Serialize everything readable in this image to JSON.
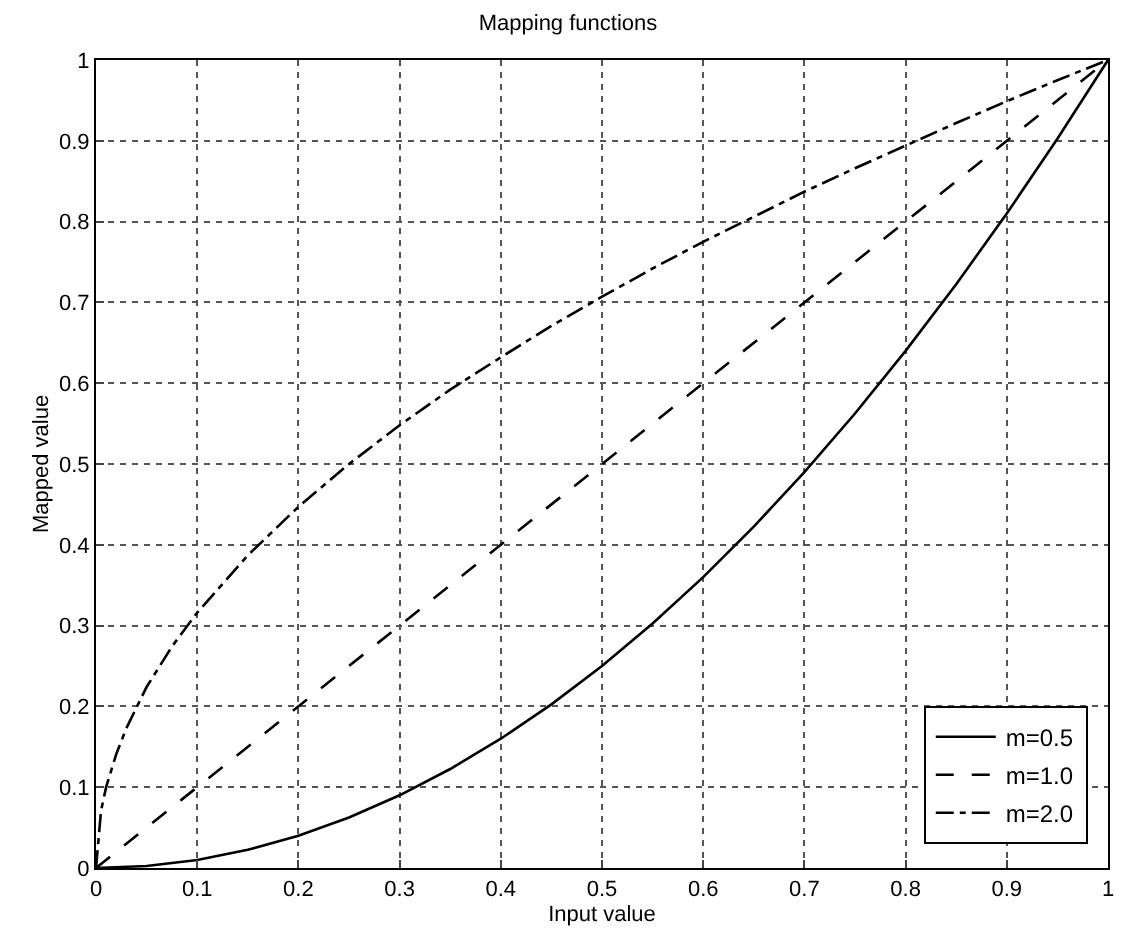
{
  "chart_data": {
    "type": "line",
    "title": "Mapping functions",
    "xlabel": "Input value",
    "ylabel": "Mapped value",
    "xlim": [
      0,
      1
    ],
    "ylim": [
      0,
      1
    ],
    "xticks": [
      0,
      0.1,
      0.2,
      0.3,
      0.4,
      0.5,
      0.6,
      0.7,
      0.8,
      0.9,
      1
    ],
    "yticks": [
      0,
      0.1,
      0.2,
      0.3,
      0.4,
      0.5,
      0.6,
      0.7,
      0.8,
      0.9,
      1
    ],
    "grid": true,
    "legend": "bottom right",
    "marker": "none",
    "series": [
      {
        "name": "m=0.5",
        "color": "#000000",
        "line_style": "solid",
        "x": [
          0,
          0.05,
          0.1,
          0.15,
          0.2,
          0.25,
          0.3,
          0.35,
          0.4,
          0.45,
          0.5,
          0.55,
          0.6,
          0.65,
          0.7,
          0.75,
          0.8,
          0.85,
          0.9,
          0.95,
          1
        ],
        "values": [
          0,
          0.0025,
          0.01,
          0.0225,
          0.04,
          0.0625,
          0.09,
          0.1225,
          0.16,
          0.2025,
          0.25,
          0.3025,
          0.36,
          0.4225,
          0.49,
          0.5625,
          0.64,
          0.7225,
          0.81,
          0.9025,
          1
        ]
      },
      {
        "name": "m=1.0",
        "color": "#000000",
        "line_style": "dashed",
        "x": [
          0,
          0.5,
          1
        ],
        "values": [
          0,
          0.5,
          1
        ]
      },
      {
        "name": "m=2.0",
        "color": "#000000",
        "line_style": "dashdot",
        "x": [
          0,
          0.005,
          0.01,
          0.02,
          0.03,
          0.05,
          0.075,
          0.1,
          0.15,
          0.2,
          0.25,
          0.3,
          0.35,
          0.4,
          0.45,
          0.5,
          0.55,
          0.6,
          0.65,
          0.7,
          0.75,
          0.8,
          0.85,
          0.9,
          0.95,
          1
        ],
        "values": [
          0,
          0.071,
          0.1,
          0.141,
          0.173,
          0.224,
          0.274,
          0.316,
          0.387,
          0.447,
          0.5,
          0.548,
          0.592,
          0.632,
          0.671,
          0.707,
          0.742,
          0.775,
          0.806,
          0.837,
          0.866,
          0.894,
          0.922,
          0.949,
          0.975,
          1
        ]
      }
    ]
  }
}
